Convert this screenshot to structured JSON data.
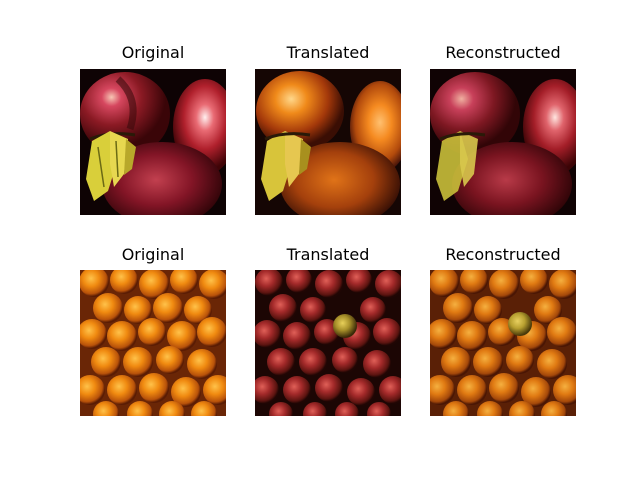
{
  "figure": {
    "rows": [
      {
        "subject": "apples",
        "panels": [
          {
            "title": "Original",
            "content": "red-apples-photo"
          },
          {
            "title": "Translated",
            "content": "orange-translated-apples"
          },
          {
            "title": "Reconstructed",
            "content": "red-reconstructed-apples"
          }
        ]
      },
      {
        "subject": "oranges",
        "panels": [
          {
            "title": "Original",
            "content": "oranges-photo"
          },
          {
            "title": "Translated",
            "content": "red-translated-oranges"
          },
          {
            "title": "Reconstructed",
            "content": "orange-reconstructed-oranges"
          }
        ]
      }
    ]
  }
}
